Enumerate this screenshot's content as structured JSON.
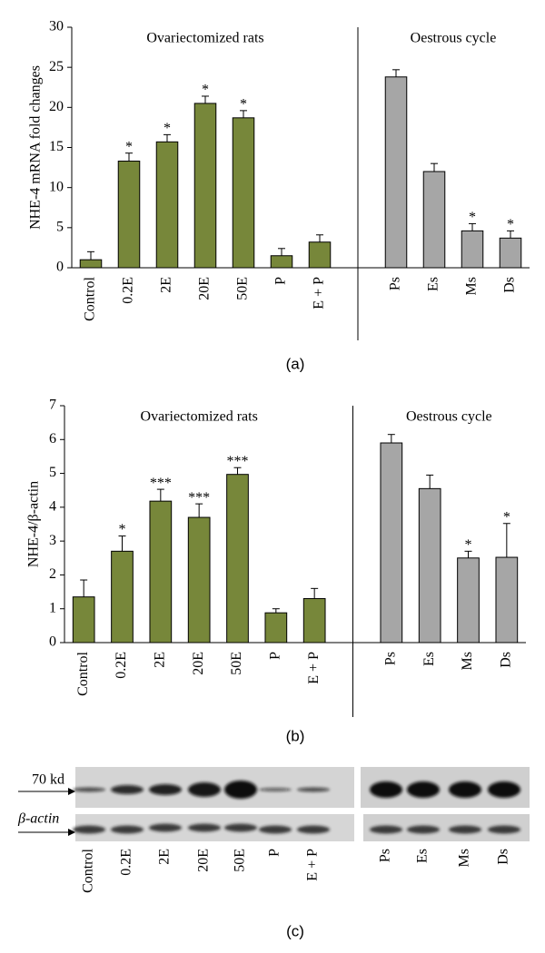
{
  "chart_data": [
    {
      "type": "bar",
      "caption": "(a)",
      "y_label": "NHE-4 mRNA fold changes",
      "group_labels": [
        "Ovariectomized rats",
        "Oestrous cycle"
      ],
      "categories": [
        "Control",
        "0.2E",
        "2E",
        "20E",
        "50E",
        "P",
        "E + P",
        null,
        "Ps",
        "Es",
        "Ms",
        "Ds"
      ],
      "values": [
        1.0,
        13.3,
        15.7,
        20.5,
        18.7,
        1.5,
        3.2,
        null,
        23.8,
        12.0,
        4.6,
        3.7
      ],
      "errors": [
        1.0,
        1.0,
        0.9,
        0.9,
        0.9,
        0.9,
        0.9,
        null,
        0.9,
        1.0,
        0.9,
        0.9
      ],
      "annotations": [
        null,
        "*",
        "*",
        "*",
        "*",
        null,
        null,
        null,
        null,
        null,
        "*",
        "*"
      ],
      "colors": [
        "#77873a",
        "#77873a",
        "#77873a",
        "#77873a",
        "#77873a",
        "#77873a",
        "#77873a",
        null,
        "#a6a6a6",
        "#a6a6a6",
        "#a6a6a6",
        "#a6a6a6"
      ],
      "ylim": [
        0,
        30
      ],
      "yticks": [
        0,
        5,
        10,
        15,
        20,
        25,
        30
      ],
      "grid": false
    },
    {
      "type": "bar",
      "caption": "(b)",
      "y_label": "NHE-4/β-actin",
      "group_labels": [
        "Ovariectomized rats",
        "Oestrous cycle"
      ],
      "categories": [
        "Control",
        "0.2E",
        "2E",
        "20E",
        "50E",
        "P",
        "E + P",
        null,
        "Ps",
        "Es",
        "Ms",
        "Ds"
      ],
      "values": [
        1.35,
        2.7,
        4.18,
        3.7,
        4.97,
        0.88,
        1.3,
        null,
        5.9,
        4.55,
        2.5,
        2.52
      ],
      "errors": [
        0.5,
        0.45,
        0.35,
        0.4,
        0.2,
        0.12,
        0.3,
        null,
        0.25,
        0.4,
        0.2,
        1.0
      ],
      "annotations": [
        null,
        "*",
        "***",
        "***",
        "***",
        null,
        null,
        null,
        null,
        null,
        "*",
        "*"
      ],
      "colors": [
        "#77873a",
        "#77873a",
        "#77873a",
        "#77873a",
        "#77873a",
        "#77873a",
        "#77873a",
        null,
        "#a6a6a6",
        "#a6a6a6",
        "#a6a6a6",
        "#a6a6a6"
      ],
      "ylim": [
        0,
        7
      ],
      "yticks": [
        0,
        1,
        2,
        3,
        4,
        5,
        6,
        7
      ],
      "grid": false
    }
  ],
  "blot": {
    "caption": "(c)",
    "marker_label": "70 kd",
    "loading_label": "β-actin",
    "lanes": [
      "Control",
      "0.2E",
      "2E",
      "20E",
      "50E",
      "P",
      "E + P",
      "Ps",
      "Es",
      "Ms",
      "Ds"
    ]
  }
}
